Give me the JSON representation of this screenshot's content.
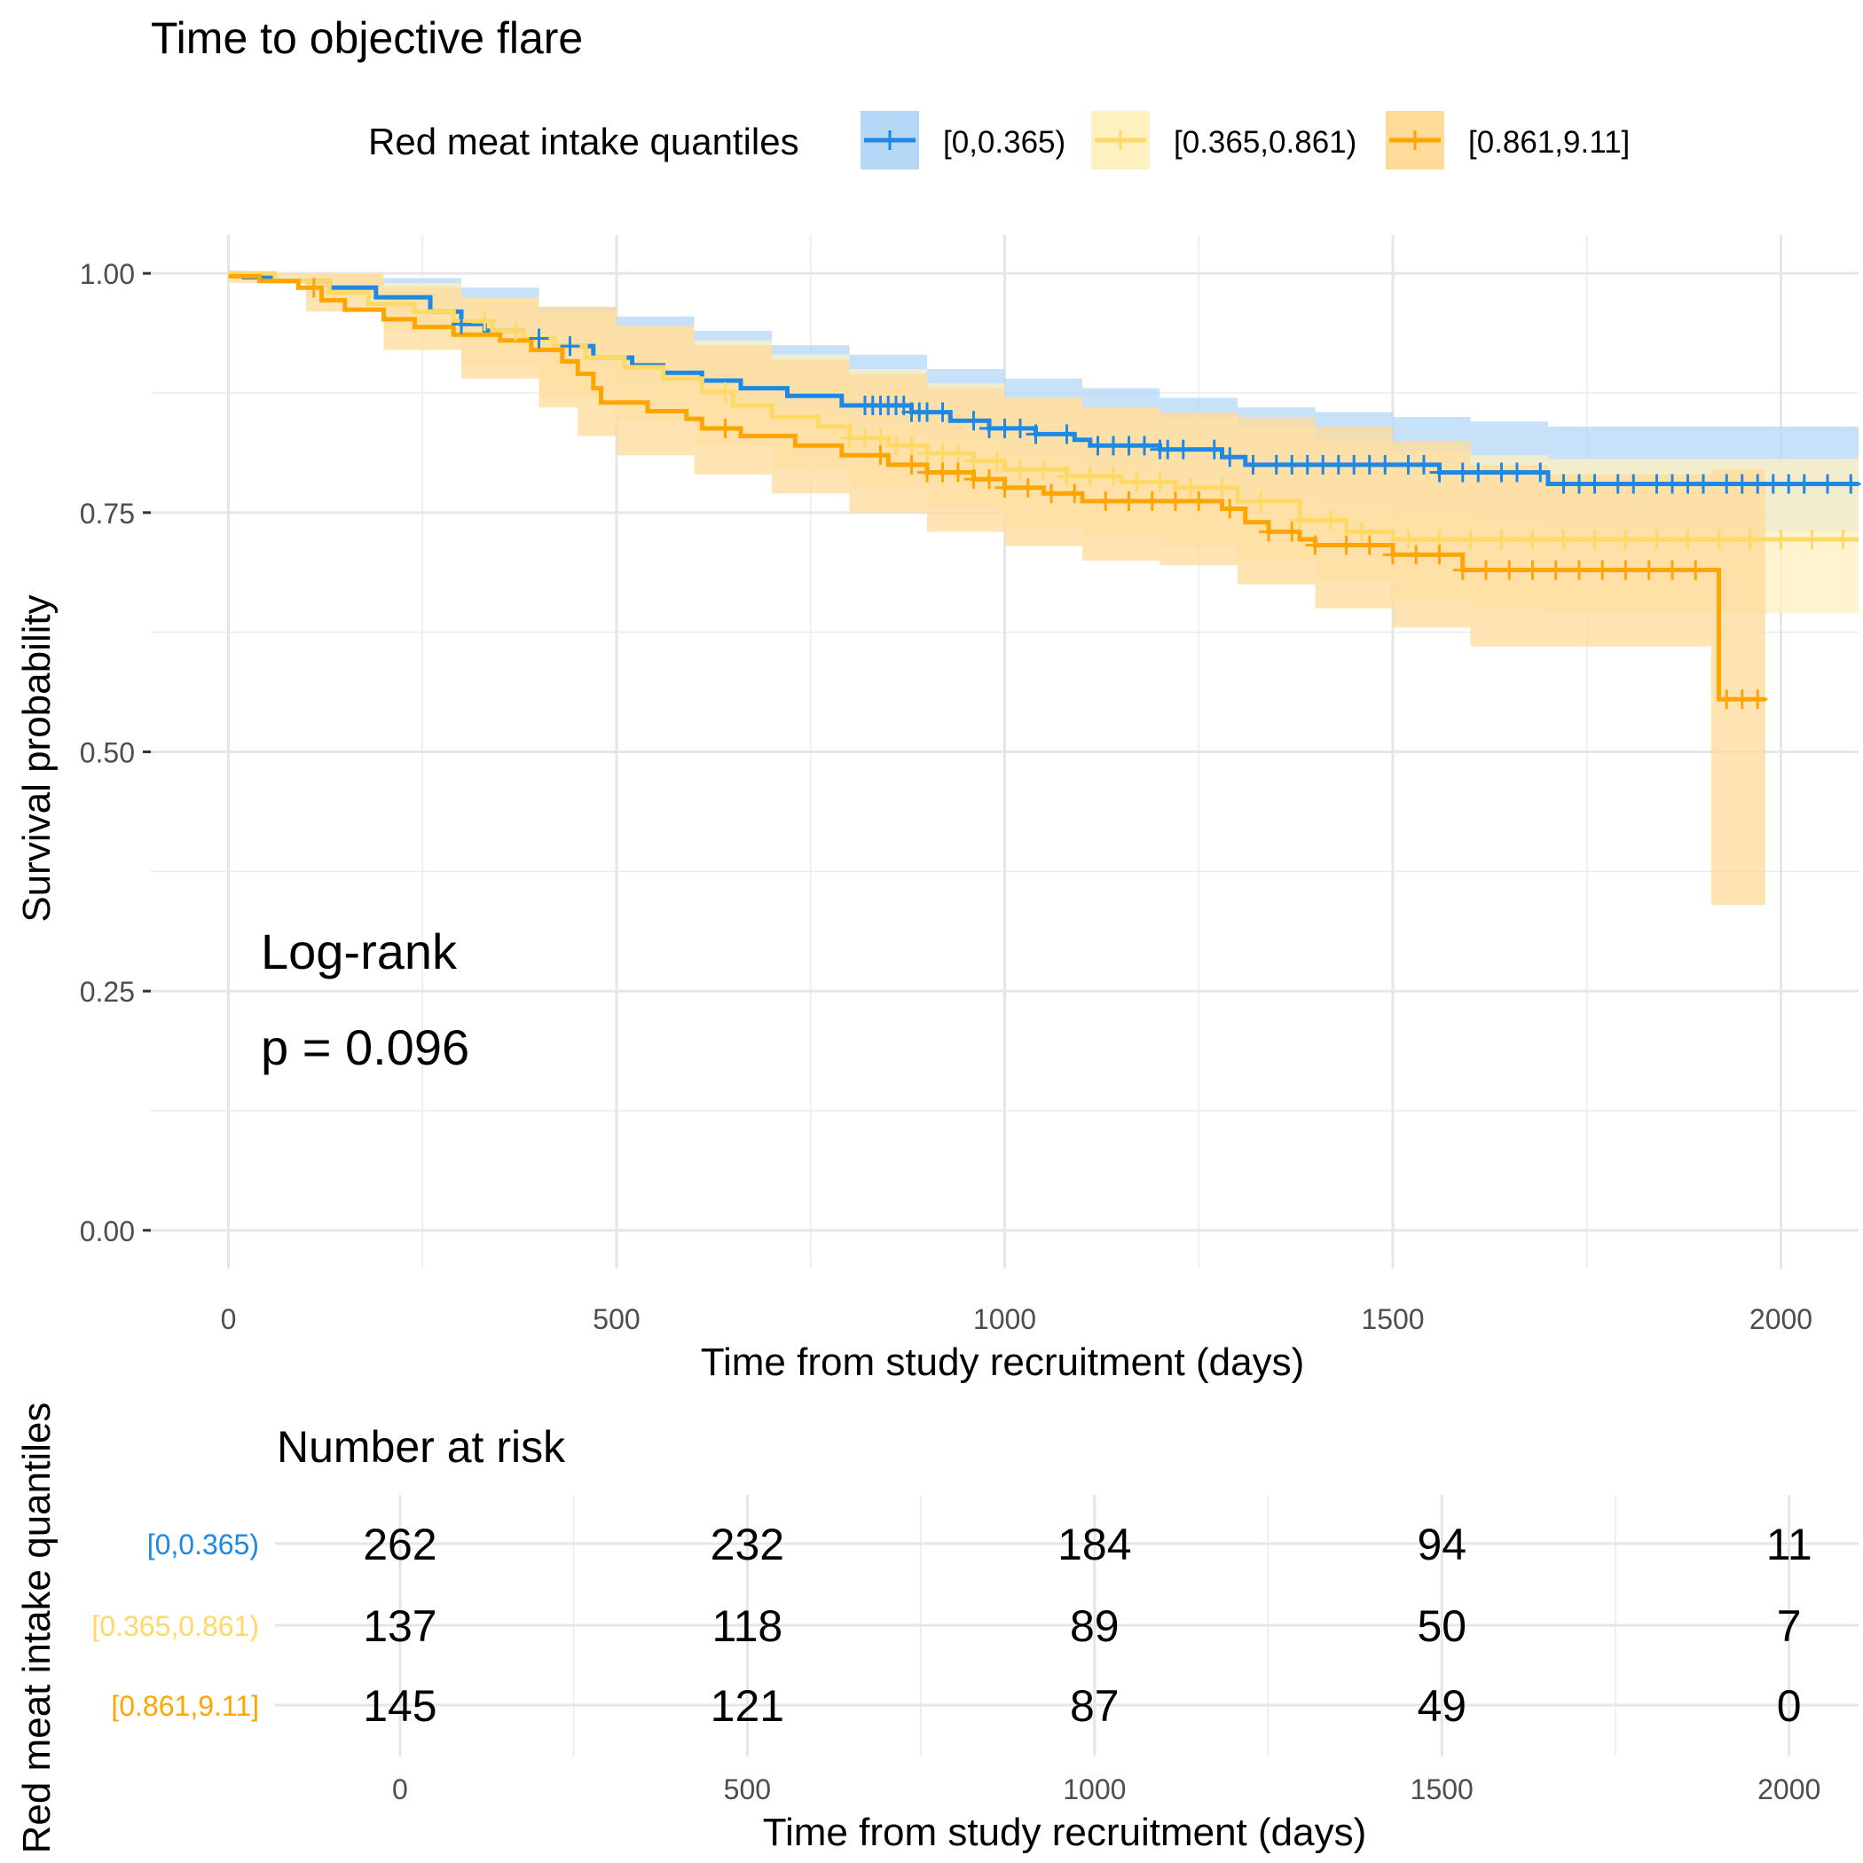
{
  "chart_data": [
    {
      "type": "line",
      "subtype": "kaplan-meier",
      "title": "Time to objective flare",
      "xlabel": "Time from study recruitment (days)",
      "ylabel": "Survival probability",
      "xlim": [
        -100,
        2100
      ],
      "ylim": [
        -0.04,
        1.04
      ],
      "xticks": [
        0,
        500,
        1000,
        1500,
        2000
      ],
      "yticks": [
        0.0,
        0.25,
        0.5,
        0.75,
        1.0
      ],
      "ytick_labels": [
        "0.00",
        "0.25",
        "0.50",
        "0.75",
        "1.00"
      ],
      "grid": true,
      "legend": {
        "title": "Red meat intake quantiles",
        "position": "top"
      },
      "annotation": {
        "line1": "Log-rank",
        "line2": "p = 0.096"
      },
      "series": [
        {
          "name": "[0,0.365)",
          "color": "#1E88E5",
          "band_color": "#B3D7F5",
          "steps": [
            [
              0,
              1.0
            ],
            [
              20,
              0.996
            ],
            [
              60,
              0.992
            ],
            [
              130,
              0.985
            ],
            [
              190,
              0.975
            ],
            [
              260,
              0.96
            ],
            [
              300,
              0.947
            ],
            [
              330,
              0.94
            ],
            [
              380,
              0.932
            ],
            [
              420,
              0.924
            ],
            [
              470,
              0.912
            ],
            [
              520,
              0.904
            ],
            [
              560,
              0.896
            ],
            [
              610,
              0.888
            ],
            [
              660,
              0.88
            ],
            [
              720,
              0.872
            ],
            [
              790,
              0.862
            ],
            [
              880,
              0.855
            ],
            [
              930,
              0.846
            ],
            [
              980,
              0.838
            ],
            [
              1040,
              0.832
            ],
            [
              1090,
              0.826
            ],
            [
              1110,
              0.82
            ],
            [
              1200,
              0.816
            ],
            [
              1280,
              0.808
            ],
            [
              1310,
              0.8
            ],
            [
              1560,
              0.792
            ],
            [
              1700,
              0.78
            ],
            [
              2100,
              0.78
            ]
          ],
          "lower": [
            [
              0,
              1.0
            ],
            [
              100,
              0.985
            ],
            [
              200,
              0.96
            ],
            [
              300,
              0.93
            ],
            [
              400,
              0.905
            ],
            [
              500,
              0.885
            ],
            [
              600,
              0.868
            ],
            [
              700,
              0.852
            ],
            [
              800,
              0.838
            ],
            [
              900,
              0.826
            ],
            [
              1000,
              0.81
            ],
            [
              1100,
              0.795
            ],
            [
              1200,
              0.785
            ],
            [
              1300,
              0.77
            ],
            [
              1400,
              0.762
            ],
            [
              1500,
              0.755
            ],
            [
              1600,
              0.742
            ],
            [
              1700,
              0.73
            ],
            [
              2100,
              0.722
            ]
          ],
          "upper": [
            [
              0,
              1.0
            ],
            [
              100,
              1.0
            ],
            [
              200,
              0.995
            ],
            [
              300,
              0.985
            ],
            [
              400,
              0.965
            ],
            [
              500,
              0.955
            ],
            [
              600,
              0.94
            ],
            [
              700,
              0.925
            ],
            [
              800,
              0.915
            ],
            [
              900,
              0.9
            ],
            [
              1000,
              0.89
            ],
            [
              1100,
              0.88
            ],
            [
              1200,
              0.87
            ],
            [
              1300,
              0.86
            ],
            [
              1400,
              0.855
            ],
            [
              1500,
              0.85
            ],
            [
              1600,
              0.845
            ],
            [
              1700,
              0.84
            ],
            [
              2100,
              0.84
            ]
          ],
          "censor": [
            300,
            400,
            440,
            820,
            830,
            840,
            850,
            860,
            870,
            880,
            890,
            900,
            920,
            960,
            980,
            1000,
            1020,
            1040,
            1080,
            1120,
            1140,
            1160,
            1180,
            1200,
            1210,
            1230,
            1270,
            1290,
            1320,
            1350,
            1370,
            1390,
            1410,
            1430,
            1450,
            1470,
            1490,
            1520,
            1540,
            1560,
            1590,
            1610,
            1640,
            1660,
            1690,
            1720,
            1740,
            1760,
            1790,
            1810,
            1840,
            1860,
            1880,
            1900,
            1930,
            1950,
            1970,
            1990,
            2010,
            2030,
            2060,
            2090
          ]
        },
        {
          "name": "[0.365,0.861)",
          "color": "#FFD966",
          "band_color": "#FFF0BF",
          "steps": [
            [
              0,
              1.0
            ],
            [
              60,
              0.992
            ],
            [
              130,
              0.98
            ],
            [
              180,
              0.968
            ],
            [
              240,
              0.96
            ],
            [
              290,
              0.95
            ],
            [
              340,
              0.94
            ],
            [
              380,
              0.932
            ],
            [
              420,
              0.924
            ],
            [
              460,
              0.912
            ],
            [
              510,
              0.902
            ],
            [
              560,
              0.89
            ],
            [
              610,
              0.876
            ],
            [
              650,
              0.862
            ],
            [
              700,
              0.85
            ],
            [
              760,
              0.84
            ],
            [
              800,
              0.828
            ],
            [
              850,
              0.82
            ],
            [
              900,
              0.812
            ],
            [
              960,
              0.804
            ],
            [
              1000,
              0.795
            ],
            [
              1080,
              0.788
            ],
            [
              1150,
              0.782
            ],
            [
              1220,
              0.776
            ],
            [
              1300,
              0.762
            ],
            [
              1380,
              0.742
            ],
            [
              1440,
              0.73
            ],
            [
              1500,
              0.722
            ],
            [
              2100,
              0.722
            ]
          ],
          "lower": [
            [
              0,
              1.0
            ],
            [
              100,
              0.975
            ],
            [
              200,
              0.94
            ],
            [
              300,
              0.905
            ],
            [
              400,
              0.87
            ],
            [
              500,
              0.845
            ],
            [
              600,
              0.82
            ],
            [
              700,
              0.795
            ],
            [
              800,
              0.775
            ],
            [
              900,
              0.755
            ],
            [
              1000,
              0.735
            ],
            [
              1100,
              0.725
            ],
            [
              1200,
              0.715
            ],
            [
              1300,
              0.7
            ],
            [
              1400,
              0.68
            ],
            [
              1500,
              0.66
            ],
            [
              1600,
              0.65
            ],
            [
              1700,
              0.645
            ],
            [
              2100,
              0.645
            ]
          ],
          "upper": [
            [
              0,
              1.0
            ],
            [
              100,
              1.0
            ],
            [
              200,
              0.99
            ],
            [
              300,
              0.975
            ],
            [
              400,
              0.96
            ],
            [
              500,
              0.945
            ],
            [
              600,
              0.93
            ],
            [
              700,
              0.915
            ],
            [
              800,
              0.9
            ],
            [
              900,
              0.885
            ],
            [
              1000,
              0.87
            ],
            [
              1100,
              0.86
            ],
            [
              1200,
              0.85
            ],
            [
              1300,
              0.84
            ],
            [
              1400,
              0.825
            ],
            [
              1500,
              0.815
            ],
            [
              1600,
              0.81
            ],
            [
              1700,
              0.806
            ],
            [
              2100,
              0.806
            ]
          ],
          "censor": [
            330,
            370,
            640,
            800,
            820,
            840,
            860,
            880,
            900,
            920,
            940,
            960,
            990,
            1020,
            1050,
            1080,
            1110,
            1140,
            1170,
            1200,
            1240,
            1280,
            1330,
            1380,
            1420,
            1460,
            1520,
            1560,
            1600,
            1640,
            1680,
            1720,
            1760,
            1800,
            1840,
            1880,
            1920,
            1960,
            2000,
            2040,
            2080
          ]
        },
        {
          "name": "[0.861,9.11]",
          "color": "#FFA500",
          "band_color": "#FFDB99",
          "steps": [
            [
              0,
              0.997
            ],
            [
              40,
              0.992
            ],
            [
              90,
              0.985
            ],
            [
              120,
              0.972
            ],
            [
              150,
              0.962
            ],
            [
              200,
              0.952
            ],
            [
              240,
              0.944
            ],
            [
              290,
              0.936
            ],
            [
              350,
              0.93
            ],
            [
              390,
              0.92
            ],
            [
              430,
              0.908
            ],
            [
              450,
              0.895
            ],
            [
              470,
              0.88
            ],
            [
              480,
              0.865
            ],
            [
              540,
              0.856
            ],
            [
              590,
              0.848
            ],
            [
              610,
              0.838
            ],
            [
              660,
              0.83
            ],
            [
              730,
              0.82
            ],
            [
              790,
              0.81
            ],
            [
              850,
              0.8
            ],
            [
              900,
              0.792
            ],
            [
              960,
              0.785
            ],
            [
              1000,
              0.776
            ],
            [
              1050,
              0.77
            ],
            [
              1100,
              0.762
            ],
            [
              1250,
              0.762
            ],
            [
              1280,
              0.754
            ],
            [
              1310,
              0.74
            ],
            [
              1340,
              0.73
            ],
            [
              1380,
              0.722
            ],
            [
              1400,
              0.716
            ],
            [
              1500,
              0.706
            ],
            [
              1590,
              0.69
            ],
            [
              1920,
              0.69
            ],
            [
              1920,
              0.555
            ],
            [
              1980,
              0.555
            ]
          ],
          "lower": [
            [
              0,
              0.99
            ],
            [
              100,
              0.96
            ],
            [
              200,
              0.92
            ],
            [
              300,
              0.89
            ],
            [
              400,
              0.86
            ],
            [
              450,
              0.83
            ],
            [
              500,
              0.81
            ],
            [
              600,
              0.79
            ],
            [
              700,
              0.77
            ],
            [
              800,
              0.75
            ],
            [
              900,
              0.73
            ],
            [
              1000,
              0.715
            ],
            [
              1100,
              0.7
            ],
            [
              1200,
              0.695
            ],
            [
              1300,
              0.675
            ],
            [
              1400,
              0.65
            ],
            [
              1500,
              0.63
            ],
            [
              1600,
              0.61
            ],
            [
              1700,
              0.61
            ],
            [
              1910,
              0.61
            ],
            [
              1910,
              0.34
            ],
            [
              1980,
              0.34
            ]
          ],
          "upper": [
            [
              0,
              1.0
            ],
            [
              100,
              1.0
            ],
            [
              200,
              0.985
            ],
            [
              300,
              0.975
            ],
            [
              400,
              0.965
            ],
            [
              500,
              0.945
            ],
            [
              600,
              0.925
            ],
            [
              700,
              0.91
            ],
            [
              800,
              0.895
            ],
            [
              900,
              0.88
            ],
            [
              1000,
              0.87
            ],
            [
              1100,
              0.86
            ],
            [
              1200,
              0.855
            ],
            [
              1300,
              0.85
            ],
            [
              1400,
              0.84
            ],
            [
              1500,
              0.825
            ],
            [
              1600,
              0.8
            ],
            [
              1700,
              0.79
            ],
            [
              1910,
              0.79
            ],
            [
              1910,
              0.795
            ],
            [
              1980,
              0.795
            ]
          ],
          "censor": [
            110,
            640,
            840,
            880,
            900,
            920,
            940,
            960,
            980,
            1000,
            1030,
            1060,
            1090,
            1130,
            1160,
            1190,
            1220,
            1250,
            1290,
            1340,
            1370,
            1400,
            1440,
            1470,
            1500,
            1530,
            1560,
            1590,
            1620,
            1650,
            1680,
            1710,
            1740,
            1770,
            1800,
            1830,
            1860,
            1890,
            1930,
            1950,
            1970
          ]
        }
      ]
    },
    {
      "type": "table",
      "title": "Number at risk",
      "xlabel": "Time from study recruitment (days)",
      "ylabel": "Red meat intake quantiles",
      "xlim": [
        -180,
        2100
      ],
      "time_points": [
        0,
        500,
        1000,
        1500,
        2000
      ],
      "rows": [
        {
          "label": "[0,0.365)",
          "color": "#1E88E5",
          "values": [
            262,
            232,
            184,
            94,
            11
          ]
        },
        {
          "label": "[0.365,0.861)",
          "color": "#FFD966",
          "values": [
            137,
            118,
            89,
            50,
            7
          ]
        },
        {
          "label": "[0.861,9.11]",
          "color": "#FFA500",
          "values": [
            145,
            121,
            87,
            49,
            0
          ]
        }
      ]
    }
  ]
}
